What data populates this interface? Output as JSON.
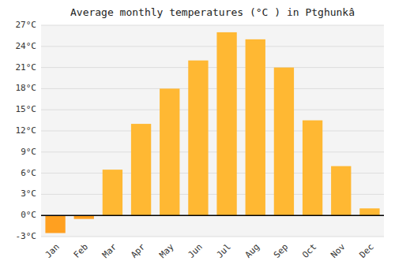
{
  "chart_data": {
    "type": "bar",
    "title": "Average monthly temperatures (°C ) in Ptghunkâ",
    "categories": [
      "Jan",
      "Feb",
      "Mar",
      "Apr",
      "May",
      "Jun",
      "Jul",
      "Aug",
      "Sep",
      "Oct",
      "Nov",
      "Dec"
    ],
    "values": [
      -2.5,
      -0.5,
      6.5,
      13.0,
      18.0,
      22.0,
      26.0,
      25.0,
      21.0,
      13.5,
      7.0,
      1.0
    ],
    "colors": [
      "#FFA020",
      "#FFA020",
      "#FFB833",
      "#FFB833",
      "#FFB833",
      "#FFB833",
      "#FFB833",
      "#FFB833",
      "#FFB833",
      "#FFB833",
      "#FFB833",
      "#FFB833"
    ],
    "ylim": [
      -3,
      27
    ],
    "yticks": [
      {
        "value": -3,
        "label": "-3°C"
      },
      {
        "value": 0,
        "label": "0°C"
      },
      {
        "value": 3,
        "label": "3°C"
      },
      {
        "value": 6,
        "label": "6°C"
      },
      {
        "value": 9,
        "label": "9°C"
      },
      {
        "value": 12,
        "label": "12°C"
      },
      {
        "value": 15,
        "label": "15°C"
      },
      {
        "value": 18,
        "label": "18°C"
      },
      {
        "value": 21,
        "label": "21°C"
      },
      {
        "value": 24,
        "label": "24°C"
      },
      {
        "value": 27,
        "label": "27°C"
      }
    ],
    "grid": true
  }
}
